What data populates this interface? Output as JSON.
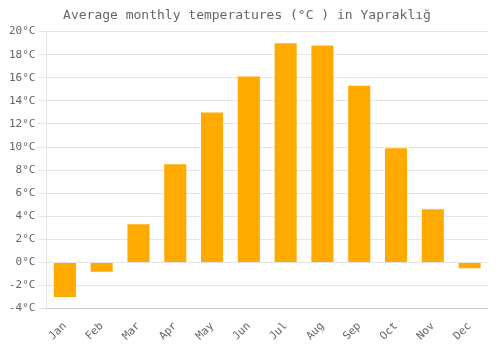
{
  "chart_data": {
    "type": "bar",
    "title": "Average monthly temperatures (°C ) in Yapraklığ",
    "categories": [
      "Jan",
      "Feb",
      "Mar",
      "Apr",
      "May",
      "Jun",
      "Jul",
      "Aug",
      "Sep",
      "Oct",
      "Nov",
      "Dec"
    ],
    "values": [
      -3.0,
      -0.8,
      3.3,
      8.5,
      13.0,
      16.1,
      19.0,
      18.8,
      15.3,
      9.9,
      4.6,
      -0.5
    ],
    "color": "#FFAA00",
    "ylim": [
      -4,
      20
    ],
    "yticks": [
      {
        "value": -4,
        "label": "-4°C"
      },
      {
        "value": -2,
        "label": "-2°C"
      },
      {
        "value": 0,
        "label": "0°C"
      },
      {
        "value": 2,
        "label": "2°C"
      },
      {
        "value": 4,
        "label": "4°C"
      },
      {
        "value": 6,
        "label": "6°C"
      },
      {
        "value": 8,
        "label": "8°C"
      },
      {
        "value": 10,
        "label": "10°C"
      },
      {
        "value": 12,
        "label": "12°C"
      },
      {
        "value": 14,
        "label": "14°C"
      },
      {
        "value": 16,
        "label": "16°C"
      },
      {
        "value": 18,
        "label": "18°C"
      },
      {
        "value": 20,
        "label": "20°C"
      }
    ],
    "grid": true
  }
}
